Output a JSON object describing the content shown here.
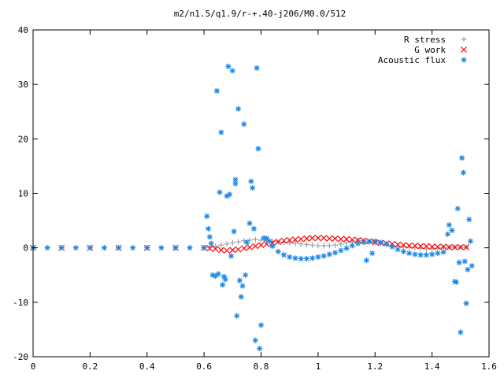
{
  "chart_data": {
    "type": "scatter",
    "title": "m2/n1.5/q1.9/r-+.40-j206/M0.0/512",
    "xlabel": "",
    "ylabel": "",
    "xlim": [
      0,
      1.6
    ],
    "ylim": [
      -20,
      40
    ],
    "x_ticks": [
      0,
      0.2,
      0.4,
      0.6,
      0.8,
      1,
      1.2,
      1.4,
      1.6
    ],
    "x_tick_labels": [
      "0",
      "0.2",
      "0.4",
      "0.6",
      "0.8",
      "1",
      "1.2",
      "1.4",
      "1.6"
    ],
    "y_ticks": [
      -20,
      -10,
      0,
      10,
      20,
      30,
      40
    ],
    "y_tick_labels": [
      "-20",
      "-10",
      "0",
      "10",
      "20",
      "30",
      "40"
    ],
    "grid": false,
    "legend_position": "top-right",
    "series": [
      {
        "name": "R stress",
        "marker": "+",
        "color": "#a0a0a0",
        "points": [
          [
            0.0,
            0
          ],
          [
            0.1,
            0
          ],
          [
            0.2,
            0
          ],
          [
            0.3,
            0
          ],
          [
            0.4,
            0
          ],
          [
            0.5,
            0
          ],
          [
            0.6,
            0
          ],
          [
            0.62,
            0.1
          ],
          [
            0.64,
            0.3
          ],
          [
            0.66,
            0.5
          ],
          [
            0.68,
            0.7
          ],
          [
            0.7,
            0.9
          ],
          [
            0.72,
            1.1
          ],
          [
            0.74,
            1.3
          ],
          [
            0.76,
            1.4
          ],
          [
            0.78,
            1.5
          ],
          [
            0.8,
            1.4
          ],
          [
            0.82,
            1.3
          ],
          [
            0.84,
            1.2
          ],
          [
            0.86,
            1.1
          ],
          [
            0.88,
            1.0
          ],
          [
            0.9,
            0.9
          ],
          [
            0.92,
            0.8
          ],
          [
            0.94,
            0.7
          ],
          [
            0.96,
            0.6
          ],
          [
            0.98,
            0.5
          ],
          [
            1.0,
            0.4
          ],
          [
            1.02,
            0.4
          ],
          [
            1.04,
            0.4
          ],
          [
            1.06,
            0.5
          ],
          [
            1.08,
            0.7
          ],
          [
            1.1,
            0.9
          ],
          [
            1.12,
            1.1
          ],
          [
            1.14,
            1.3
          ],
          [
            1.16,
            1.3
          ],
          [
            1.18,
            1.2
          ],
          [
            1.2,
            1.0
          ],
          [
            1.22,
            0.8
          ],
          [
            1.24,
            0.6
          ],
          [
            1.26,
            0.4
          ],
          [
            1.28,
            0.3
          ],
          [
            1.3,
            0.2
          ],
          [
            1.32,
            0.1
          ],
          [
            1.34,
            0.0
          ],
          [
            1.36,
            -0.1
          ],
          [
            1.38,
            -0.2
          ],
          [
            1.4,
            -0.2
          ],
          [
            1.42,
            -0.1
          ],
          [
            1.44,
            0.0
          ],
          [
            1.46,
            0.1
          ],
          [
            1.48,
            0.1
          ],
          [
            1.5,
            0.1
          ],
          [
            1.52,
            0.1
          ]
        ]
      },
      {
        "name": "G work",
        "marker": "x",
        "color": "#ff0000",
        "points": [
          [
            0.0,
            0
          ],
          [
            0.1,
            0
          ],
          [
            0.2,
            0
          ],
          [
            0.3,
            0
          ],
          [
            0.4,
            0
          ],
          [
            0.5,
            0
          ],
          [
            0.6,
            0
          ],
          [
            0.62,
            -0.1
          ],
          [
            0.64,
            -0.2
          ],
          [
            0.66,
            -0.4
          ],
          [
            0.68,
            -0.5
          ],
          [
            0.7,
            -0.4
          ],
          [
            0.72,
            -0.3
          ],
          [
            0.74,
            -0.1
          ],
          [
            0.76,
            0.1
          ],
          [
            0.78,
            0.3
          ],
          [
            0.8,
            0.5
          ],
          [
            0.82,
            0.7
          ],
          [
            0.84,
            0.9
          ],
          [
            0.86,
            1.1
          ],
          [
            0.88,
            1.3
          ],
          [
            0.9,
            1.4
          ],
          [
            0.92,
            1.5
          ],
          [
            0.94,
            1.6
          ],
          [
            0.96,
            1.7
          ],
          [
            0.98,
            1.8
          ],
          [
            1.0,
            1.8
          ],
          [
            1.02,
            1.8
          ],
          [
            1.04,
            1.7
          ],
          [
            1.06,
            1.7
          ],
          [
            1.08,
            1.6
          ],
          [
            1.1,
            1.6
          ],
          [
            1.12,
            1.5
          ],
          [
            1.14,
            1.4
          ],
          [
            1.16,
            1.3
          ],
          [
            1.18,
            1.2
          ],
          [
            1.2,
            1.0
          ],
          [
            1.22,
            0.9
          ],
          [
            1.24,
            0.8
          ],
          [
            1.26,
            0.7
          ],
          [
            1.28,
            0.6
          ],
          [
            1.3,
            0.5
          ],
          [
            1.32,
            0.4
          ],
          [
            1.34,
            0.4
          ],
          [
            1.36,
            0.3
          ],
          [
            1.38,
            0.3
          ],
          [
            1.4,
            0.2
          ],
          [
            1.42,
            0.2
          ],
          [
            1.44,
            0.2
          ],
          [
            1.46,
            0.1
          ],
          [
            1.48,
            0.1
          ],
          [
            1.5,
            0.1
          ],
          [
            1.52,
            0.1
          ]
        ]
      },
      {
        "name": "Acoustic flux",
        "marker": "*",
        "color": "#1e88e5",
        "points": [
          [
            0.0,
            0
          ],
          [
            0.05,
            0
          ],
          [
            0.1,
            0
          ],
          [
            0.15,
            0
          ],
          [
            0.2,
            0
          ],
          [
            0.25,
            0
          ],
          [
            0.3,
            0
          ],
          [
            0.35,
            0
          ],
          [
            0.4,
            0
          ],
          [
            0.45,
            0
          ],
          [
            0.5,
            0
          ],
          [
            0.55,
            0
          ],
          [
            0.6,
            0
          ],
          [
            0.61,
            5.8
          ],
          [
            0.615,
            3.5
          ],
          [
            0.62,
            2.0
          ],
          [
            0.625,
            0.8
          ],
          [
            0.63,
            -5.0
          ],
          [
            0.64,
            -5.2
          ],
          [
            0.645,
            28.8
          ],
          [
            0.65,
            -4.8
          ],
          [
            0.655,
            10.2
          ],
          [
            0.66,
            21.2
          ],
          [
            0.665,
            -6.8
          ],
          [
            0.67,
            -5.3
          ],
          [
            0.675,
            -5.8
          ],
          [
            0.68,
            9.5
          ],
          [
            0.685,
            33.3
          ],
          [
            0.69,
            9.8
          ],
          [
            0.695,
            -1.5
          ],
          [
            0.7,
            32.5
          ],
          [
            0.705,
            3.0
          ],
          [
            0.71,
            12.5
          ],
          [
            0.71,
            11.8
          ],
          [
            0.715,
            -12.5
          ],
          [
            0.72,
            25.5
          ],
          [
            0.725,
            -6.0
          ],
          [
            0.73,
            -9.0
          ],
          [
            0.735,
            -7.0
          ],
          [
            0.74,
            22.7
          ],
          [
            0.745,
            -5.0
          ],
          [
            0.75,
            1.0
          ],
          [
            0.76,
            4.5
          ],
          [
            0.765,
            12.2
          ],
          [
            0.77,
            11.0
          ],
          [
            0.775,
            3.5
          ],
          [
            0.78,
            -17.0
          ],
          [
            0.785,
            33.0
          ],
          [
            0.79,
            18.2
          ],
          [
            0.795,
            -18.5
          ],
          [
            0.8,
            -14.2
          ],
          [
            0.81,
            1.8
          ],
          [
            0.82,
            1.7
          ],
          [
            0.83,
            1.2
          ],
          [
            0.84,
            0.3
          ],
          [
            0.86,
            -0.7
          ],
          [
            0.88,
            -1.3
          ],
          [
            0.9,
            -1.7
          ],
          [
            0.92,
            -1.9
          ],
          [
            0.94,
            -2.0
          ],
          [
            0.96,
            -2.0
          ],
          [
            0.98,
            -1.9
          ],
          [
            1.0,
            -1.7
          ],
          [
            1.02,
            -1.5
          ],
          [
            1.04,
            -1.2
          ],
          [
            1.06,
            -0.9
          ],
          [
            1.08,
            -0.5
          ],
          [
            1.1,
            -0.1
          ],
          [
            1.12,
            0.4
          ],
          [
            1.14,
            0.8
          ],
          [
            1.16,
            1.0
          ],
          [
            1.17,
            -2.3
          ],
          [
            1.18,
            1.1
          ],
          [
            1.19,
            -1.0
          ],
          [
            1.2,
            1.2
          ],
          [
            1.22,
            1.0
          ],
          [
            1.24,
            0.7
          ],
          [
            1.26,
            0.2
          ],
          [
            1.28,
            -0.3
          ],
          [
            1.3,
            -0.7
          ],
          [
            1.32,
            -1.0
          ],
          [
            1.34,
            -1.2
          ],
          [
            1.36,
            -1.3
          ],
          [
            1.38,
            -1.3
          ],
          [
            1.4,
            -1.2
          ],
          [
            1.42,
            -1.0
          ],
          [
            1.44,
            -0.8
          ],
          [
            1.455,
            2.5
          ],
          [
            1.46,
            4.2
          ],
          [
            1.47,
            3.2
          ],
          [
            1.48,
            -6.2
          ],
          [
            1.485,
            -6.3
          ],
          [
            1.49,
            7.2
          ],
          [
            1.495,
            -2.7
          ],
          [
            1.5,
            -15.5
          ],
          [
            1.505,
            16.5
          ],
          [
            1.51,
            13.8
          ],
          [
            1.515,
            -2.5
          ],
          [
            1.52,
            -10.2
          ],
          [
            1.525,
            -4.0
          ],
          [
            1.53,
            5.2
          ],
          [
            1.535,
            1.2
          ],
          [
            1.54,
            -3.3
          ]
        ]
      }
    ]
  }
}
